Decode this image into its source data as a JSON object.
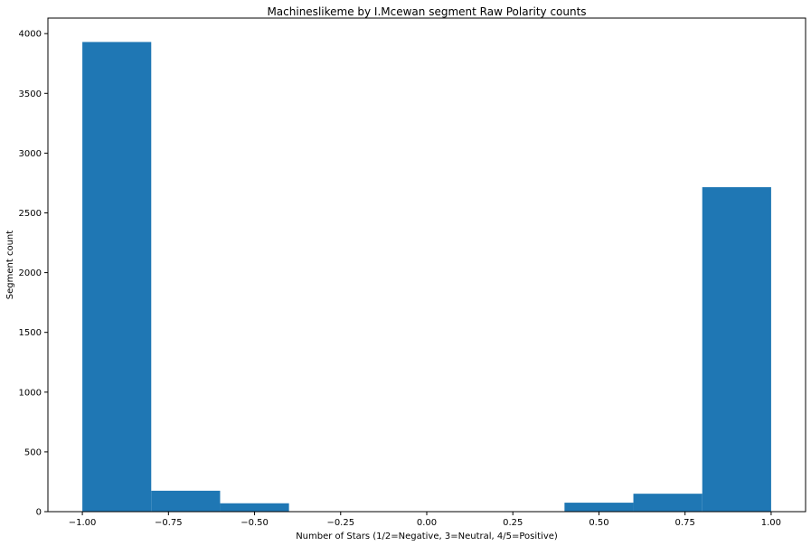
{
  "chart_data": {
    "type": "bar",
    "title": "Machineslikeme by I.Mcewan segment Raw Polarity counts",
    "xlabel": "Number of Stars (1/2=Negative, 3=Neutral, 4/5=Positive)",
    "ylabel": "Segment count",
    "xlim": [
      -1.1,
      1.1
    ],
    "ylim": [
      0,
      4130
    ],
    "xticks": [
      -1.0,
      -0.75,
      -0.5,
      -0.25,
      0.0,
      0.25,
      0.5,
      0.75,
      1.0
    ],
    "xtick_labels": [
      "−1.00",
      "−0.75",
      "−0.50",
      "−0.25",
      "0.00",
      "0.25",
      "0.50",
      "0.75",
      "1.00"
    ],
    "yticks": [
      0,
      500,
      1000,
      1500,
      2000,
      2500,
      3000,
      3500,
      4000
    ],
    "yticks_labels": [
      "0",
      "500",
      "1000",
      "1500",
      "2000",
      "2500",
      "3000",
      "3500",
      "4000"
    ],
    "bins": [
      {
        "x0": -1.0,
        "x1": -0.8,
        "count": 3930
      },
      {
        "x0": -0.8,
        "x1": -0.6,
        "count": 175
      },
      {
        "x0": -0.6,
        "x1": -0.4,
        "count": 70
      },
      {
        "x0": -0.4,
        "x1": -0.2,
        "count": 0
      },
      {
        "x0": -0.2,
        "x1": 0.0,
        "count": 0
      },
      {
        "x0": 0.0,
        "x1": 0.2,
        "count": 0
      },
      {
        "x0": 0.2,
        "x1": 0.4,
        "count": 0
      },
      {
        "x0": 0.4,
        "x1": 0.6,
        "count": 75
      },
      {
        "x0": 0.6,
        "x1": 0.8,
        "count": 150
      },
      {
        "x0": 0.8,
        "x1": 1.0,
        "count": 2715
      }
    ],
    "bar_color": "#1f77b4",
    "grid": false,
    "legend": "none"
  }
}
